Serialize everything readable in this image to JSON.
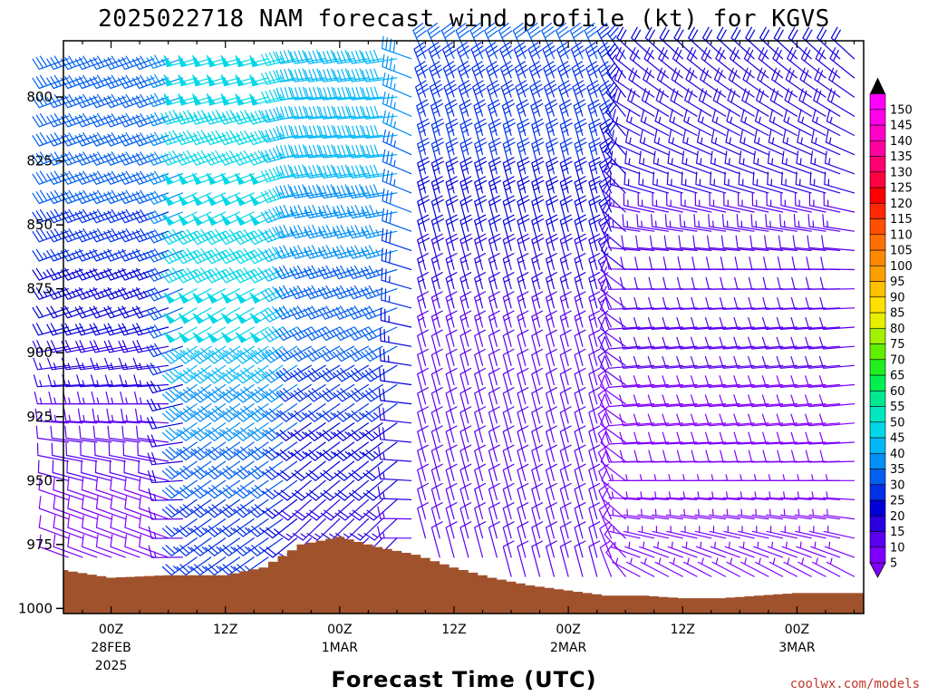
{
  "chart_data": {
    "type": "wind-barb-time-height",
    "title": "2025022718 NAM forecast wind profile (kt) for KGVS",
    "xlabel": "Forecast Time (UTC)",
    "ylabel": "",
    "x_unit": "forecast hours from 2025-02-27 18Z",
    "xlim": [
      1,
      85
    ],
    "y_unit": "hPa",
    "ylim": [
      778,
      1002
    ],
    "y_ticks": [
      800,
      825,
      850,
      875,
      900,
      925,
      950,
      975,
      1000
    ],
    "y_tick_labels": [
      "800",
      "825",
      "850",
      "875",
      "900",
      "925",
      "950",
      "975",
      "1000"
    ],
    "x_ticks": [
      {
        "hour": 6,
        "label": "00Z",
        "sub1": "28FEB",
        "sub2": "2025"
      },
      {
        "hour": 18,
        "label": "12Z",
        "sub1": "",
        "sub2": ""
      },
      {
        "hour": 30,
        "label": "00Z",
        "sub1": "1MAR",
        "sub2": ""
      },
      {
        "hour": 42,
        "label": "12Z",
        "sub1": "",
        "sub2": ""
      },
      {
        "hour": 54,
        "label": "00Z",
        "sub1": "2MAR",
        "sub2": ""
      },
      {
        "hour": 66,
        "label": "12Z",
        "sub1": "",
        "sub2": ""
      },
      {
        "hour": 78,
        "label": "00Z",
        "sub1": "3MAR",
        "sub2": ""
      }
    ],
    "terrain_color": "#a0522d",
    "surface_pressure": {
      "hours": [
        1,
        6,
        12,
        18,
        22,
        26,
        30,
        34,
        38,
        42,
        46,
        50,
        54,
        58,
        62,
        66,
        70,
        74,
        78,
        82,
        85
      ],
      "hpa": [
        985,
        988,
        987,
        987,
        984,
        975,
        972,
        976,
        979,
        984,
        988,
        991,
        993,
        995,
        995,
        996,
        996,
        995,
        994,
        994,
        994
      ]
    },
    "colorbar": {
      "ticks": [
        "5",
        "10",
        "15",
        "20",
        "25",
        "30",
        "35",
        "40",
        "45",
        "50",
        "55",
        "60",
        "65",
        "70",
        "75",
        "80",
        "85",
        "90",
        "95",
        "100",
        "105",
        "110",
        "115",
        "120",
        "125",
        "130",
        "135",
        "140",
        "145",
        "150"
      ],
      "colors": [
        "#8000ff",
        "#5a00f0",
        "#2a00e0",
        "#0000d8",
        "#0030e8",
        "#0060f0",
        "#0090f8",
        "#00b8f8",
        "#00d8e8",
        "#00e8c0",
        "#00e890",
        "#00f050",
        "#20f020",
        "#60f000",
        "#a0f000",
        "#e8f000",
        "#ffe000",
        "#ffc000",
        "#ffa000",
        "#ff8800",
        "#ff7000",
        "#ff5000",
        "#ff2800",
        "#ff0000",
        "#ff0040",
        "#ff0070",
        "#ff00a0",
        "#ff00c8",
        "#ff00e8",
        "#ff00ff"
      ]
    },
    "wind_field": {
      "description_for_renderer": "speed (kt) and direction-from (deg) by pressure level (rows) for regimes of forecast hours",
      "levels_hpa": [
        780,
        790,
        800,
        810,
        820,
        830,
        840,
        850,
        860,
        870,
        880,
        890,
        900,
        910,
        920,
        930,
        940,
        950,
        960,
        970,
        980,
        990,
        1000
      ],
      "regimes": [
        {
          "hours": [
            1,
            14
          ],
          "dir": [
            250,
            250,
            250,
            250,
            250,
            250,
            250,
            250,
            250,
            250,
            250,
            255,
            260,
            265,
            270,
            275,
            280,
            285,
            290,
            290,
            290,
            290,
            290
          ],
          "spd": [
            30,
            30,
            30,
            30,
            30,
            30,
            30,
            28,
            26,
            24,
            22,
            20,
            18,
            16,
            14,
            12,
            10,
            10,
            8,
            8,
            8,
            8,
            8
          ]
        },
        {
          "hours": [
            15,
            26
          ],
          "dir": [
            255,
            255,
            255,
            255,
            250,
            250,
            245,
            245,
            245,
            245,
            240,
            240,
            235,
            235,
            235,
            235,
            235,
            235,
            235,
            235,
            235,
            235,
            235
          ],
          "spd": [
            48,
            50,
            48,
            45,
            45,
            48,
            50,
            48,
            45,
            45,
            50,
            48,
            42,
            40,
            38,
            35,
            32,
            30,
            28,
            25,
            25,
            25,
            25
          ]
        },
        {
          "hours": [
            27,
            38
          ],
          "dir": [
            260,
            262,
            265,
            265,
            265,
            262,
            260,
            258,
            255,
            252,
            250,
            245,
            240,
            238,
            235,
            235,
            232,
            230,
            228,
            225,
            225,
            225,
            225
          ],
          "spd": [
            42,
            42,
            40,
            40,
            40,
            40,
            38,
            36,
            35,
            34,
            32,
            30,
            30,
            28,
            26,
            24,
            22,
            20,
            18,
            16,
            16,
            16,
            16
          ]
        },
        {
          "hours": [
            39,
            60
          ],
          "dir": [
            335,
            338,
            340,
            342,
            345,
            345,
            345,
            345,
            345,
            345,
            345,
            345,
            345,
            345,
            345,
            345,
            345,
            345,
            345,
            345,
            345,
            345,
            345
          ],
          "spd": [
            30,
            30,
            28,
            28,
            26,
            25,
            24,
            22,
            20,
            18,
            16,
            14,
            12,
            12,
            10,
            10,
            10,
            10,
            10,
            10,
            10,
            10,
            10
          ]
        },
        {
          "hours": [
            61,
            85
          ],
          "dir": [
            315,
            310,
            305,
            300,
            295,
            290,
            285,
            280,
            275,
            270,
            268,
            266,
            265,
            265,
            265,
            265,
            268,
            270,
            275,
            280,
            290,
            300,
            310
          ],
          "spd": [
            20,
            20,
            18,
            18,
            16,
            16,
            15,
            14,
            12,
            12,
            10,
            10,
            10,
            10,
            8,
            8,
            8,
            6,
            6,
            6,
            6,
            6,
            6
          ]
        }
      ]
    },
    "credit": "coolwx.com/models"
  }
}
